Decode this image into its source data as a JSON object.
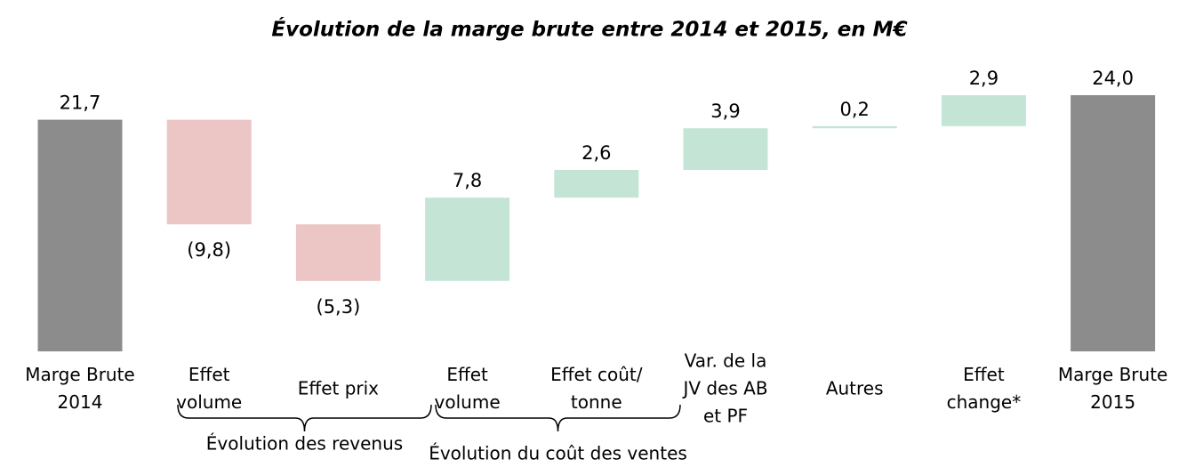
{
  "chart_data": {
    "type": "waterfall",
    "title": "Évolution de la marge brute entre 2014 et 2015, en M€",
    "categories": [
      [
        "Marge Brute",
        "2014"
      ],
      [
        "Effet",
        "volume"
      ],
      [
        "Effet prix"
      ],
      [
        "Effet",
        "volume"
      ],
      [
        "Effet coût/",
        "tonne"
      ],
      [
        "Var. de la",
        "JV des AB",
        "et PF"
      ],
      [
        "Autres"
      ],
      [
        "Effet",
        "change*"
      ],
      [
        "Marge Brute",
        "2015"
      ]
    ],
    "values": [
      21.7,
      -9.8,
      -5.3,
      7.8,
      2.6,
      3.9,
      0.2,
      2.9,
      24.0
    ],
    "value_labels": [
      "21,7",
      "(9,8)",
      "(5,3)",
      "7,8",
      "2,6",
      "3,9",
      "0,2",
      "2,9",
      "24,0"
    ],
    "measure": [
      "absolute",
      "relative",
      "relative",
      "relative",
      "relative",
      "relative",
      "relative",
      "relative",
      "absolute"
    ],
    "colors": {
      "total": "#8c8c8c",
      "decrease": "#ecc5c5",
      "increase": "#c4e5d6"
    },
    "groups": [
      "Évolution des revenus",
      "Évolution du coût des ventes"
    ]
  }
}
